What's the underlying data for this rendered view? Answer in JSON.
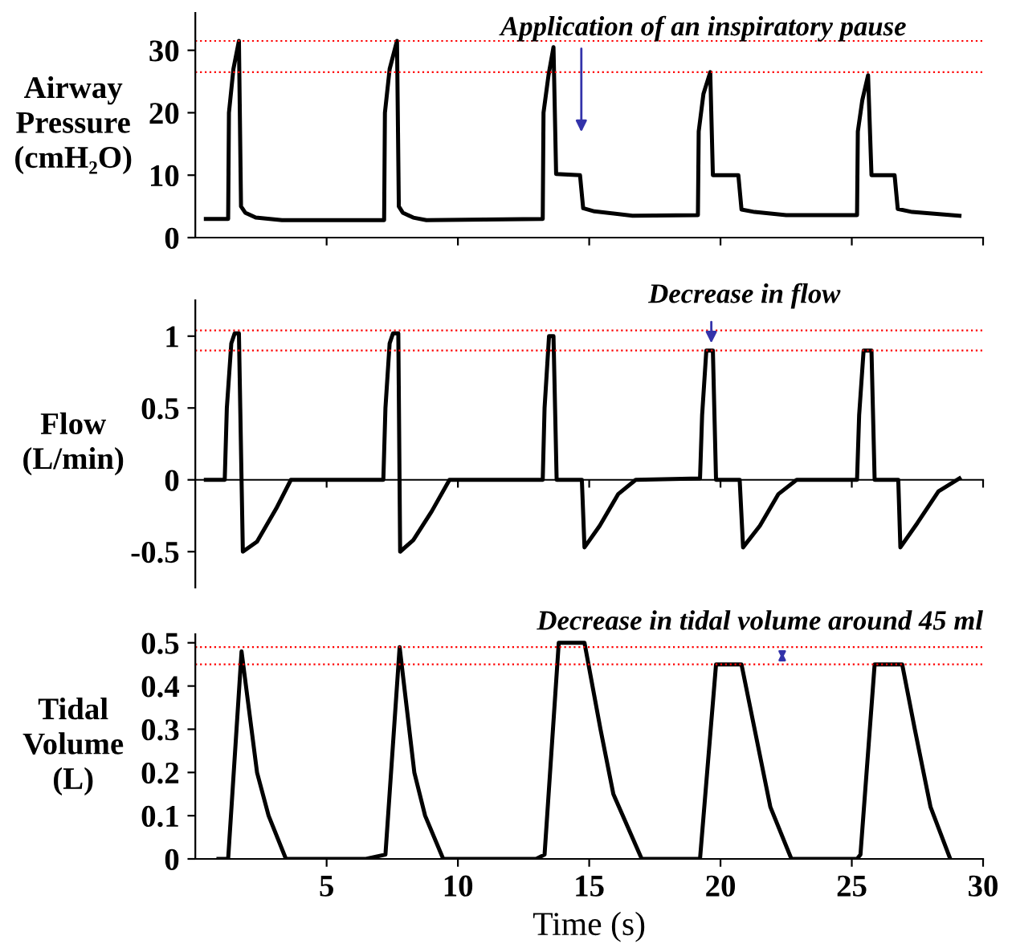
{
  "chart_data": [
    {
      "type": "line",
      "ylabel": "Airway\nPressure\n(cmH₂O)",
      "color": "#000000",
      "line_style": "solid",
      "x": [
        0.4,
        1.25,
        1.28,
        1.45,
        1.66,
        1.74,
        1.9,
        2.3,
        3.3,
        7.19,
        7.22,
        7.4,
        7.68,
        7.75,
        7.9,
        8.3,
        8.8,
        13.23,
        13.26,
        13.45,
        13.64,
        13.74,
        14.65,
        14.77,
        15.2,
        16.65,
        19.14,
        19.17,
        19.35,
        19.61,
        19.71,
        20.68,
        20.8,
        21.3,
        22.5,
        25.2,
        25.23,
        25.4,
        25.62,
        25.75,
        26.63,
        26.75,
        27.3,
        29.1
      ],
      "values": [
        3,
        3,
        20,
        27,
        31.5,
        5,
        4,
        3.2,
        2.8,
        2.8,
        20,
        27,
        31.5,
        5,
        4,
        3.2,
        2.8,
        3,
        20,
        26,
        30.5,
        10.2,
        10,
        4.7,
        4.2,
        3.5,
        3.6,
        17,
        23,
        26.5,
        10,
        10,
        4.5,
        4.1,
        3.6,
        3.6,
        17,
        22,
        26,
        10,
        10,
        4.6,
        4.1,
        3.5
      ],
      "xlim": [
        0,
        30
      ],
      "xticks": [
        {
          "value": 5,
          "label": null
        },
        {
          "value": 10,
          "label": null
        },
        {
          "value": 15,
          "label": null
        },
        {
          "value": 20,
          "label": null
        },
        {
          "value": 25,
          "label": null
        },
        {
          "value": 30,
          "label": null
        }
      ],
      "ylim": [
        0,
        36
      ],
      "yticks": [
        0,
        10,
        20,
        30
      ],
      "tick_labels": "y",
      "ref_lines": [
        {
          "axis": "y",
          "value": 31.5,
          "color": "#ff0000",
          "line_style": "dotted"
        },
        {
          "axis": "y",
          "value": 26.5,
          "color": "#ff0000",
          "line_style": "dotted"
        }
      ],
      "annotations": [
        "Application of an inspiratory pause"
      ]
    },
    {
      "type": "line",
      "ylabel": "Flow\n(L/min)",
      "color": "#000000",
      "line_style": "solid",
      "x": [
        0.4,
        1.12,
        1.2,
        1.37,
        1.5,
        1.66,
        1.76,
        1.81,
        2.35,
        3.08,
        3.64,
        7.16,
        7.24,
        7.4,
        7.53,
        7.73,
        7.8,
        8.3,
        9.0,
        9.68,
        13.23,
        13.3,
        13.47,
        13.64,
        13.76,
        14.72,
        14.82,
        15.4,
        16.1,
        16.77,
        19.22,
        19.3,
        19.46,
        19.71,
        19.83,
        20.73,
        20.86,
        21.5,
        22.2,
        22.9,
        25.2,
        25.28,
        25.45,
        25.75,
        25.87,
        26.77,
        26.85,
        27.5,
        28.3,
        29.1
      ],
      "values": [
        0,
        0,
        0.5,
        0.95,
        1.02,
        1.02,
        0,
        -0.5,
        -0.43,
        -0.2,
        0,
        0,
        0.5,
        0.95,
        1.02,
        1.02,
        -0.5,
        -0.42,
        -0.22,
        0,
        0,
        0.5,
        1.0,
        1.0,
        0,
        0,
        -0.47,
        -0.32,
        -0.1,
        0,
        0.01,
        0.45,
        0.9,
        0.9,
        0,
        0,
        -0.47,
        -0.32,
        -0.1,
        0,
        0,
        0.45,
        0.9,
        0.9,
        0,
        0,
        -0.47,
        -0.3,
        -0.08,
        0.01
      ],
      "xlim": [
        0,
        30
      ],
      "xticks": [
        {
          "value": 5,
          "label": null
        },
        {
          "value": 10,
          "label": null
        },
        {
          "value": 15,
          "label": null
        },
        {
          "value": 20,
          "label": null
        },
        {
          "value": 25,
          "label": null
        },
        {
          "value": 30,
          "label": null
        }
      ],
      "ylim": [
        -0.75,
        1.25
      ],
      "yticks": [
        -0.5,
        0,
        0.5,
        1
      ],
      "tick_labels": "y",
      "ref_lines": [
        {
          "axis": "y",
          "value": 1.04,
          "color": "#ff0000",
          "line_style": "dotted"
        },
        {
          "axis": "y",
          "value": 0.9,
          "color": "#ff0000",
          "line_style": "dotted"
        }
      ],
      "annotations": [
        "Decrease in flow"
      ]
    },
    {
      "type": "line",
      "ylabel": "Tidal\nVolume\n(L)",
      "xlabel": "Time (s)",
      "color": "#000000",
      "line_style": "solid",
      "x": [
        0.88,
        1.25,
        1.76,
        2.35,
        2.79,
        3.45,
        6.5,
        7.24,
        7.78,
        8.34,
        8.75,
        9.44,
        12.98,
        13.3,
        13.84,
        14.82,
        15.43,
        15.92,
        17.0,
        19.22,
        19.83,
        20.8,
        21.3,
        21.9,
        22.7,
        25.2,
        25.33,
        25.87,
        26.92,
        27.4,
        28.0,
        28.75
      ],
      "values": [
        0,
        0,
        0.48,
        0.2,
        0.1,
        0,
        0,
        0.01,
        0.49,
        0.2,
        0.1,
        0,
        0,
        0.01,
        0.5,
        0.5,
        0.3,
        0.15,
        0,
        0,
        0.45,
        0.45,
        0.3,
        0.12,
        0,
        0,
        0.01,
        0.45,
        0.45,
        0.3,
        0.12,
        0
      ],
      "xlim": [
        0,
        30
      ],
      "xticks": [
        5,
        10,
        15,
        20,
        25,
        30
      ],
      "ylim": [
        0,
        0.52
      ],
      "yticks": [
        0,
        0.1,
        0.2,
        0.3,
        0.4,
        0.5
      ],
      "ref_lines": [
        {
          "axis": "y",
          "value": 0.49,
          "color": "#ff0000",
          "line_style": "dotted"
        },
        {
          "axis": "y",
          "value": 0.45,
          "color": "#ff0000",
          "line_style": "dotted"
        }
      ],
      "annotations": [
        "Decrease in tidal volume around 45 ml"
      ]
    }
  ]
}
